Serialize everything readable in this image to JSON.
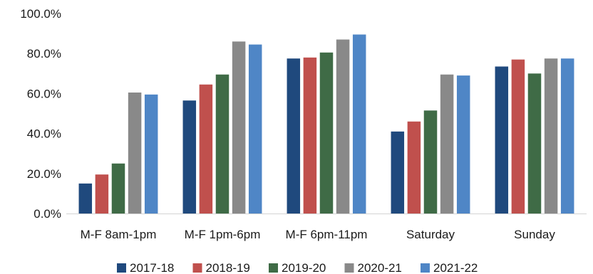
{
  "chart_data": {
    "type": "bar",
    "title": "",
    "xlabel": "",
    "ylabel": "",
    "categories": [
      "M-F 8am-1pm",
      "M-F 1pm-6pm",
      "M-F 6pm-11pm",
      "Saturday",
      "Sunday"
    ],
    "series": [
      {
        "name": "2017-18",
        "color": "#1f497d",
        "values": [
          15.0,
          56.5,
          77.5,
          41.0,
          73.5
        ]
      },
      {
        "name": "2018-19",
        "color": "#c0504d",
        "values": [
          19.5,
          64.5,
          78.0,
          46.0,
          77.0
        ]
      },
      {
        "name": "2019-20",
        "color": "#3f6b46",
        "values": [
          25.0,
          69.5,
          80.5,
          51.5,
          70.0
        ]
      },
      {
        "name": "2020-21",
        "color": "#898989",
        "values": [
          60.5,
          86.0,
          87.0,
          69.5,
          77.5
        ]
      },
      {
        "name": "2021-22",
        "color": "#4f86c6",
        "values": [
          59.5,
          84.5,
          89.5,
          69.0,
          77.5
        ]
      }
    ],
    "ylim": [
      0,
      100
    ],
    "yticks": [
      0,
      20,
      40,
      60,
      80,
      100
    ],
    "ytick_labels": [
      "0.0%",
      "20.0%",
      "40.0%",
      "60.0%",
      "80.0%",
      "100.0%"
    ],
    "grid": false,
    "legend_position": "bottom"
  }
}
